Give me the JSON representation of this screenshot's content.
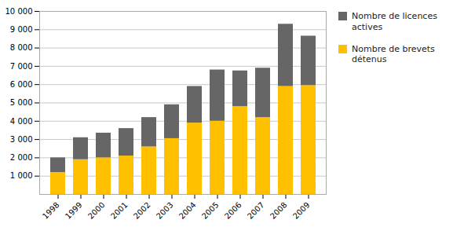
{
  "chart_data": {
    "type": "bar",
    "stacked": true,
    "grid": true,
    "legend": "right",
    "categories": [
      "1998",
      "1999",
      "2000",
      "2001",
      "2002",
      "2003",
      "2004",
      "2005",
      "2006",
      "2007",
      "2008",
      "2009"
    ],
    "series": [
      {
        "name": "Nombre de brevets\ndétenus",
        "color": "#FFC000",
        "values": [
          1200,
          1900,
          2000,
          2100,
          2600,
          3050,
          3900,
          4000,
          4800,
          4200,
          5900,
          5950
        ]
      },
      {
        "name": "Nombre de licences\nactives",
        "color": "#666666",
        "values": [
          800,
          1200,
          1350,
          1500,
          1600,
          1850,
          2000,
          2800,
          1950,
          2700,
          3400,
          2700
        ]
      }
    ],
    "ylim": [
      0,
      10000
    ],
    "yticks": [
      {
        "value": 1000,
        "label": "1 000"
      },
      {
        "value": 2000,
        "label": "2 000"
      },
      {
        "value": 3000,
        "label": "3 000"
      },
      {
        "value": 4000,
        "label": "4 000"
      },
      {
        "value": 5000,
        "label": "5 000"
      },
      {
        "value": 6000,
        "label": "6 000"
      },
      {
        "value": 7000,
        "label": "7 000"
      },
      {
        "value": 8000,
        "label": "8 000"
      },
      {
        "value": 9000,
        "label": "9 000"
      },
      {
        "value": 10000,
        "label": "10 000"
      }
    ]
  }
}
